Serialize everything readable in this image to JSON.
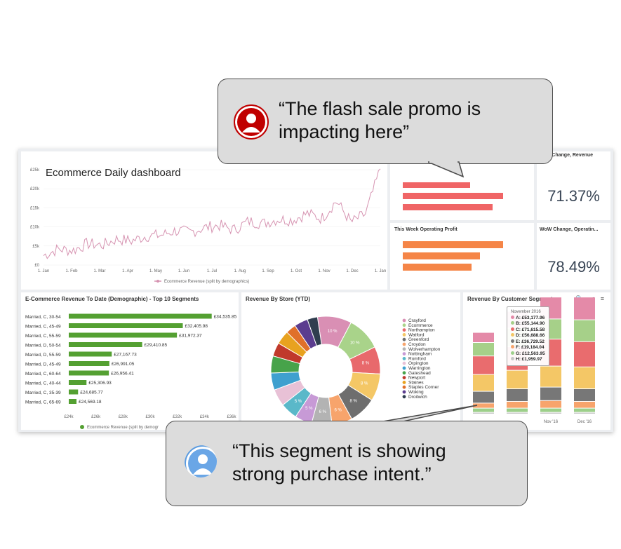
{
  "line_panel": {
    "overlay_title": "Ecommerce Daily dashboard",
    "legend": "Ecommerce Revenue (split by demographics)",
    "legend_color": "#d693b1"
  },
  "red_panel": {
    "bar_color": "#f06566"
  },
  "wow_revenue": {
    "title": "WoW Change, Revenue",
    "value": "71.37%"
  },
  "op_profit": {
    "title": "This Week Operating Profit",
    "bar_color": "#f58547"
  },
  "wow_op": {
    "title": "WoW Change, Operatin...",
    "value": "78.49%"
  },
  "demo_panel": {
    "title": "E-Commerce Revenue To Date (Demographic) - Top 10 Segments",
    "legend": "Ecommerce Revenue (split by demogr",
    "bar_color": "#54a032"
  },
  "store_panel": {
    "title": "Revenue By Store (YTD)"
  },
  "segment_panel": {
    "title": "Revenue By Customer Segment",
    "icons": "🔍 ⋖ ≡",
    "tooltip": {
      "header": "November 2016",
      "rows": [
        {
          "text": "A: £53,177.96",
          "color": "#e48aa8"
        },
        {
          "text": "B: £55,144.90",
          "color": "#a6d089"
        },
        {
          "text": "C: £71,615.58",
          "color": "#e96c6e"
        },
        {
          "text": "D: £56,688.66",
          "color": "#f4c766"
        },
        {
          "text": "E: £36,729.52",
          "color": "#777777"
        },
        {
          "text": "F: £19,184.04",
          "color": "#f7a46c"
        },
        {
          "text": "G: £12,563.95",
          "color": "#9ccf8a"
        },
        {
          "text": "H: £1,959.97",
          "color": "#c7c7c7"
        }
      ]
    }
  },
  "bubble_top": {
    "text": "“The flash sale promo is\n  impacting here”"
  },
  "bubble_bottom": {
    "text": "“This segment is showing\nstrong purchase intent.”"
  },
  "chart_data": [
    {
      "type": "line",
      "title": "Ecommerce Daily dashboard",
      "x_ticks": [
        "1. Jan",
        "1. Feb",
        "1. Mar",
        "1. Apr",
        "1. May",
        "1. Jun",
        "1. Jul",
        "1. Aug",
        "1. Sep",
        "1. Oct",
        "1. Nov",
        "1. Dec",
        "1. Jan"
      ],
      "y_ticks": [
        "£0",
        "£5k",
        "£10k",
        "£15k",
        "£20k",
        "£25k"
      ],
      "ylim": [
        0,
        25000
      ],
      "series": [
        {
          "name": "Ecommerce Revenue (split by demographics)",
          "color": "#d693b1",
          "values": [
            2500,
            4200,
            3800,
            5600,
            5200,
            6800,
            6300,
            7600,
            7800,
            9000,
            8600,
            9800,
            10400,
            9200,
            11500,
            10900,
            12000,
            11800,
            13500,
            12200,
            16800,
            11200,
            13400,
            25200
          ]
        }
      ]
    },
    {
      "type": "bar",
      "orientation": "horizontal",
      "categories": [
        "Married, C, 30-54",
        "Married, C, 45-49",
        "Married, C, 55-59",
        "Married, D, 50-54",
        "Married, D, 55-59",
        "Married, D, 45-49",
        "Married, C, 60-64",
        "Married, C, 40-44",
        "Married, C, 35-39",
        "Married, C, 65-69"
      ],
      "values": [
        34535.85,
        32405.98,
        31972.37,
        29410.85,
        27167.73,
        26991.05,
        26956.41,
        25306.93,
        24685.77,
        24569.18
      ],
      "data_labels": [
        "£34,535.85",
        "£32,405.98",
        "£31,972.37",
        "£29,410.85",
        "£27,167.73",
        "£26,991.05",
        "£26,956.41",
        "£25,306.93",
        "£24,685.77",
        "£24,569.18"
      ],
      "x_ticks": [
        "£24k",
        "£26k",
        "£28k",
        "£30k",
        "£32k",
        "£34k",
        "£36k"
      ],
      "xlim": [
        24000,
        36000
      ],
      "series_name": "Ecommerce Revenue (split by demogr"
    },
    {
      "type": "pie",
      "title": "Revenue By Store (YTD)",
      "legend": [
        "Crayford",
        "Ecommerce",
        "Northampton",
        "Watford",
        "Greenford",
        "Croydon",
        "Wolverhampton",
        "Nottingham",
        "Romford",
        "Orpington",
        "Warrington",
        "Gateshead",
        "Newport",
        "Staines",
        "Staples Corner",
        "Woking",
        "Droitwich"
      ],
      "slices": [
        {
          "label": "10 %",
          "value": 10,
          "color": "#d98fb4"
        },
        {
          "label": "10 %",
          "value": 10,
          "color": "#a9d38a"
        },
        {
          "label": "8 %",
          "value": 8,
          "color": "#e8696c"
        },
        {
          "label": "8 %",
          "value": 8,
          "color": "#f4c766"
        },
        {
          "label": "8 %",
          "value": 8,
          "color": "#6e6e6e"
        },
        {
          "label": "6 %",
          "value": 6,
          "color": "#f7a46c"
        },
        {
          "label": "6 %",
          "value": 6,
          "color": "#b3b3b3"
        },
        {
          "label": "5 %",
          "value": 5,
          "color": "#c79ad6"
        },
        {
          "label": "5 %",
          "value": 5,
          "color": "#5ab8c9"
        },
        {
          "label": "",
          "value": 5,
          "color": "#e8c1d6"
        },
        {
          "label": "",
          "value": 5,
          "color": "#3fa0cf"
        },
        {
          "label": "",
          "value": 5,
          "color": "#47a34a"
        },
        {
          "label": "",
          "value": 4,
          "color": "#c0392b"
        },
        {
          "label": "",
          "value": 4,
          "color": "#e8a21f"
        },
        {
          "label": "",
          "value": 3,
          "color": "#e0702a"
        },
        {
          "label": "",
          "value": 4,
          "color": "#5b3d8f"
        },
        {
          "label": "",
          "value": 3,
          "color": "#2f3e4f"
        }
      ]
    },
    {
      "type": "bar",
      "stacked": true,
      "categories": [
        "",
        "",
        "Nov '16",
        "Dec '16"
      ],
      "segments": [
        "A",
        "B",
        "C",
        "D",
        "E",
        "F",
        "G",
        "H"
      ],
      "segment_colors": [
        "#e48aa8",
        "#a6d089",
        "#e96c6e",
        "#f4c766",
        "#777777",
        "#f7a46c",
        "#9ccf8a",
        "#c7c7c7"
      ],
      "series": [
        {
          "name": "A",
          "values": [
            12,
            20,
            26,
            27
          ]
        },
        {
          "name": "B",
          "values": [
            16,
            22,
            24,
            26
          ]
        },
        {
          "name": "C",
          "values": [
            22,
            28,
            32,
            30
          ]
        },
        {
          "name": "D",
          "values": [
            20,
            22,
            25,
            26
          ]
        },
        {
          "name": "E",
          "values": [
            14,
            15,
            16,
            15
          ]
        },
        {
          "name": "F",
          "values": [
            6,
            8,
            9,
            8
          ]
        },
        {
          "name": "G",
          "values": [
            5,
            5,
            5,
            5
          ]
        },
        {
          "name": "H",
          "values": [
            2,
            2,
            2,
            2
          ]
        }
      ]
    }
  ]
}
